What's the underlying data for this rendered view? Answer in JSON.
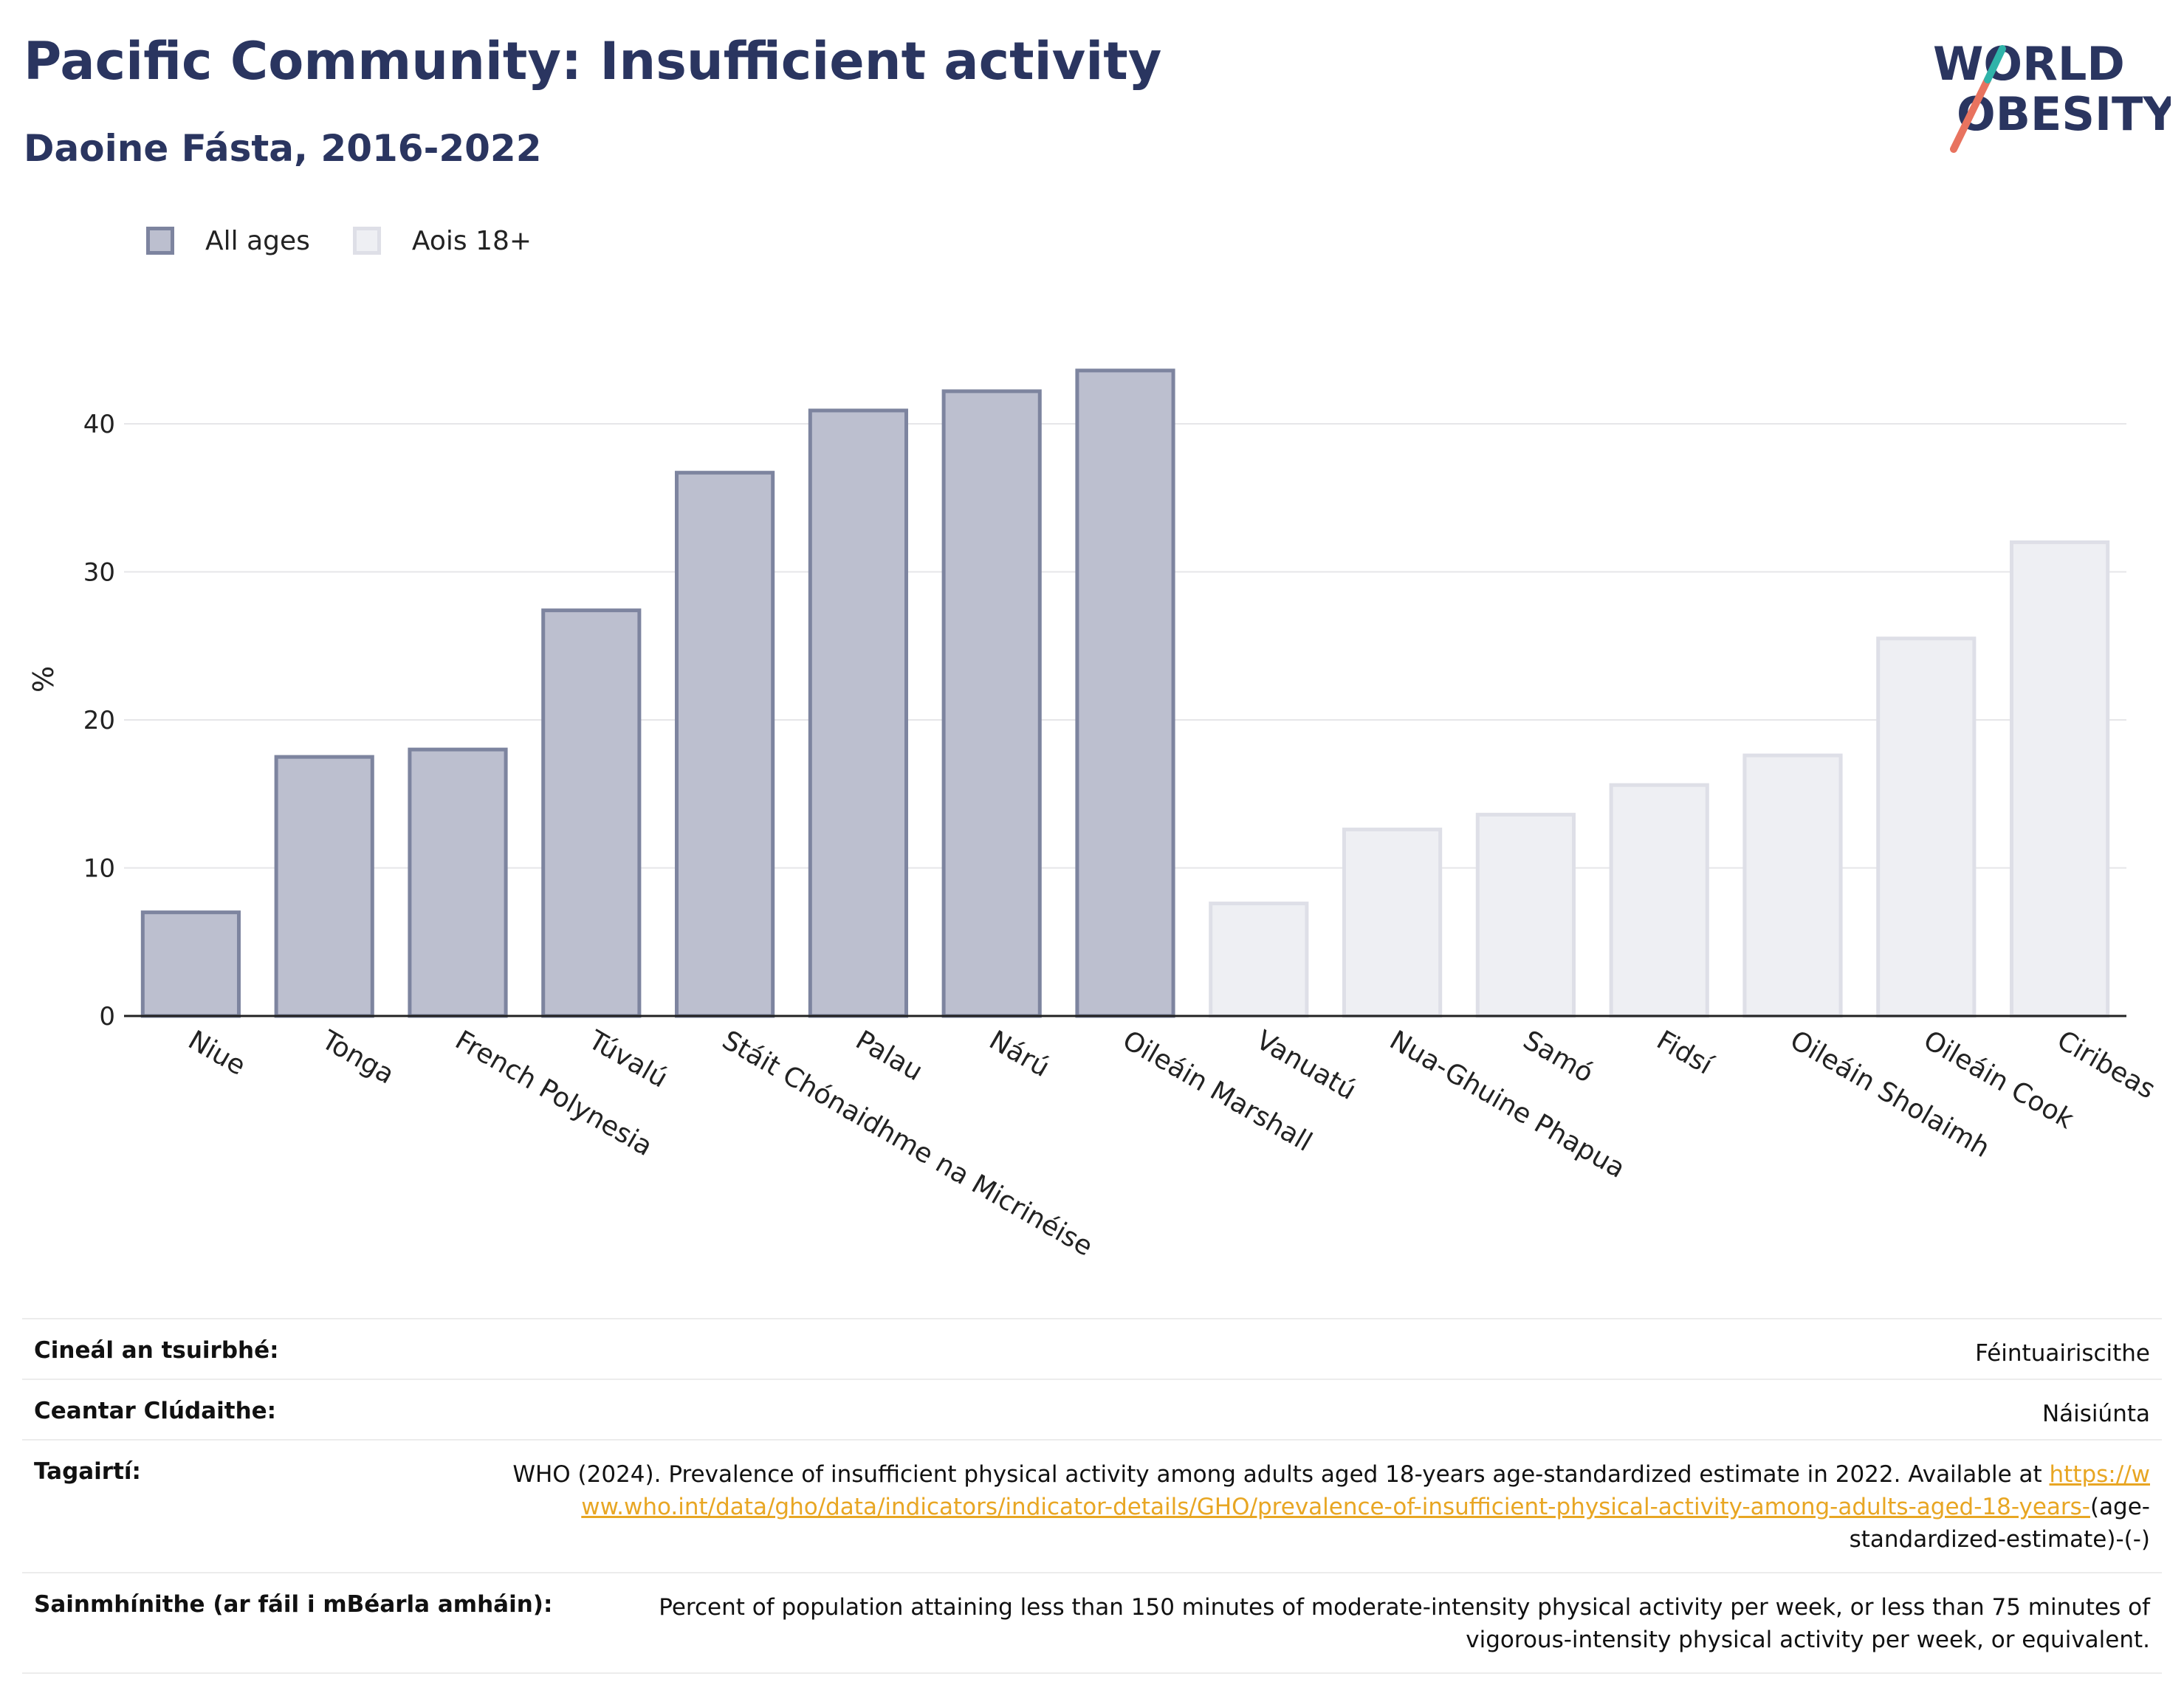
{
  "header": {
    "title": "Pacific Community: Insufficient activity",
    "subtitle": "Daoine Fásta, 2016-2022"
  },
  "logo": {
    "line1": "WORLD",
    "line2": "OBESITY"
  },
  "legend": [
    {
      "label": "All ages",
      "color": "#bcbfcf"
    },
    {
      "label": "Aois 18+",
      "color": "#eeeff3"
    }
  ],
  "chart_data": {
    "type": "bar",
    "ylabel": "%",
    "xlabel": "",
    "ylim": [
      0,
      46
    ],
    "yticks": [
      0,
      10,
      20,
      30,
      40
    ],
    "grid": true,
    "legend_position": "top-left",
    "categories": [
      "Niue",
      "Tonga",
      "French Polynesia",
      "Túvalú",
      "Stáit Chónaidhme na Micrinéise",
      "Palau",
      "Nárú",
      "Oileáin Marshall",
      "Vanuatú",
      "Nua-Ghuine Phapua",
      "Samó",
      "Fidsí",
      "Oileáin Sholaimh",
      "Oileáin Cook",
      "Ciribeas"
    ],
    "series": [
      {
        "name": "All ages",
        "color": "#bcbfcf",
        "edge": "#7d849f",
        "values": [
          7.0,
          17.5,
          18.0,
          27.4,
          36.7,
          40.9,
          42.2,
          43.6,
          null,
          null,
          null,
          null,
          null,
          null,
          null
        ]
      },
      {
        "name": "Aois 18+",
        "color": "#eeeff3",
        "edge": "#dedfe7",
        "values": [
          null,
          null,
          null,
          null,
          null,
          null,
          null,
          null,
          7.6,
          12.6,
          13.6,
          15.6,
          17.6,
          25.5,
          32.0
        ]
      }
    ]
  },
  "meta": {
    "survey_type": {
      "label": "Cineál an tsuirbhé:",
      "value": "Féintuairiscithe"
    },
    "area": {
      "label": "Ceantar Clúdaithe:",
      "value": "Náisiúnta"
    },
    "references": {
      "label": "Tagairtí:",
      "text": "WHO (2024). Prevalence of insufficient physical activity among adults aged 18-years age-standardized estimate in 2022. Available at",
      "link": "https://www.who.int/data/gho/data/indicators/indicator-details/GHO/prevalence-of-insufficient-physical-activity-among-adults-aged-18-years-",
      "suffix": "(age-standardized-estimate)-(-)"
    },
    "definitions": {
      "label": "Sainmhínithe (ar fáil i mBéarla amháin):",
      "value": "Percent of population attaining less than 150 minutes of moderate-intensity physical activity per week, or less than 75 minutes of vigorous-intensity physical activity per week, or equivalent."
    }
  }
}
